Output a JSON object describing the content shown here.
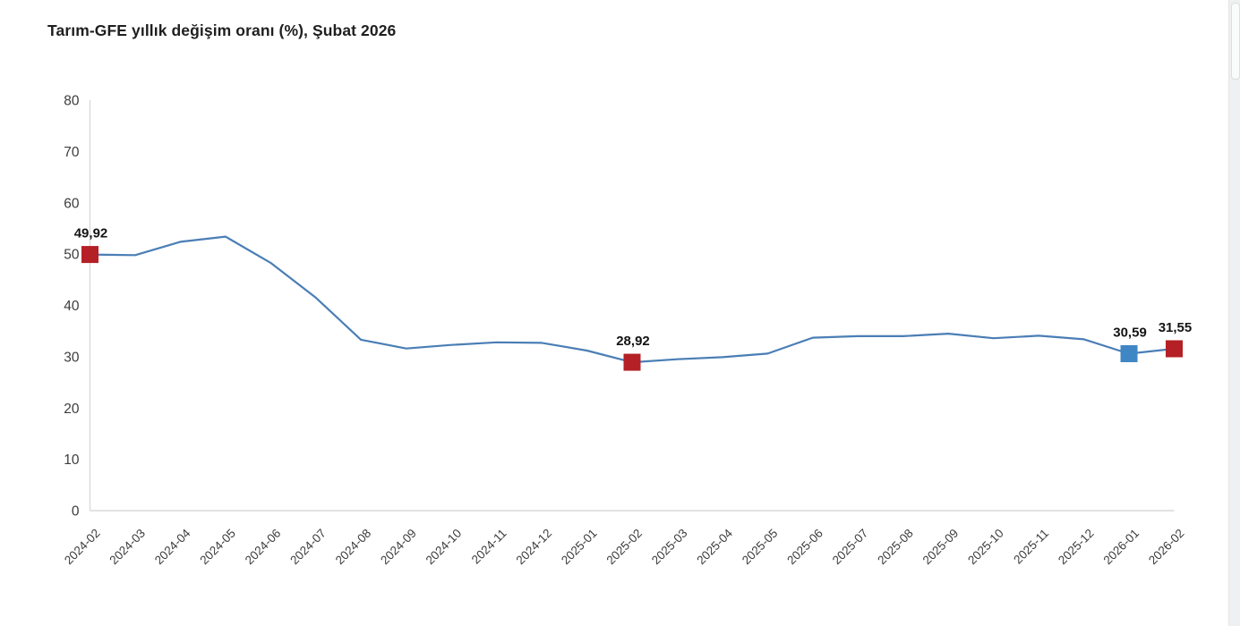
{
  "page": {
    "title": "Tarım-GFE yıllık değişim oranı (%), Şubat 2026"
  },
  "scrollbar": {
    "present": true
  },
  "chart_data": {
    "type": "line",
    "title": "Tarım-GFE yıllık değişim oranı (%), Şubat 2026",
    "xlabel": "",
    "ylabel": "",
    "ylim": [
      0,
      80
    ],
    "yticks": [
      0,
      10,
      20,
      30,
      40,
      50,
      60,
      70,
      80
    ],
    "grid": false,
    "legend": false,
    "line_color": "#4a7eb5",
    "axis_color": "#d9d9d9",
    "x": [
      "2024-02",
      "2024-03",
      "2024-04",
      "2024-05",
      "2024-06",
      "2024-07",
      "2024-08",
      "2024-09",
      "2024-10",
      "2024-11",
      "2024-12",
      "2025-01",
      "2025-02",
      "2025-03",
      "2025-04",
      "2025-05",
      "2025-06",
      "2025-07",
      "2025-08",
      "2025-09",
      "2025-10",
      "2025-11",
      "2025-12",
      "2026-01",
      "2026-02"
    ],
    "values": [
      49.92,
      49.8,
      52.4,
      53.4,
      48.3,
      41.5,
      33.3,
      31.6,
      32.3,
      32.8,
      32.7,
      31.2,
      28.92,
      29.5,
      29.9,
      30.6,
      33.7,
      34.0,
      34.0,
      34.5,
      33.6,
      34.1,
      33.4,
      30.59,
      31.55
    ],
    "annotations": [
      {
        "x": "2024-02",
        "value": 49.92,
        "label": "49,92",
        "marker_color": "#b42025"
      },
      {
        "x": "2025-02",
        "value": 28.92,
        "label": "28,92",
        "marker_color": "#b42025"
      },
      {
        "x": "2026-01",
        "value": 30.59,
        "label": "30,59",
        "marker_color": "#3f86c4"
      },
      {
        "x": "2026-02",
        "value": 31.55,
        "label": "31,55",
        "marker_color": "#b42025"
      }
    ]
  }
}
